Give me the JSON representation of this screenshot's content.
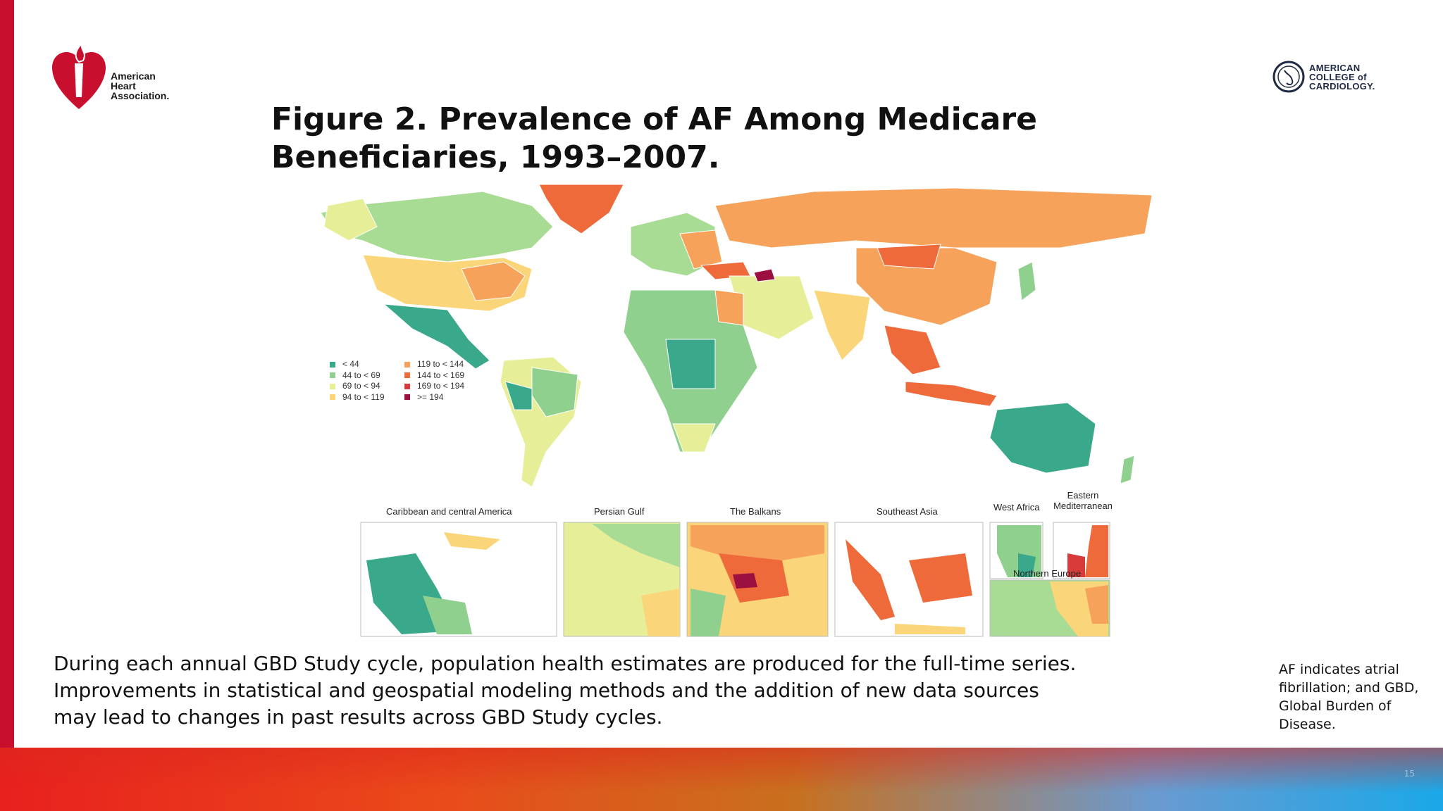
{
  "slide": {
    "title": "Figure 2. Prevalence of AF Among Medicare Beneficiaries, 1993–2007.",
    "body": "During each annual GBD Study cycle, population health estimates are produced for the full-time series. Improvements in statistical and geospatial modeling methods and the addition of new data sources may lead to changes in past results across GBD Study cycles.",
    "footnote": "AF indicates atrial fibrillation; and GBD, Global Burden of Disease.",
    "page_number": "15"
  },
  "logos": {
    "aha": {
      "line1": "American",
      "line2": "Heart",
      "line3": "Association."
    },
    "acc": {
      "line1": "AMERICAN",
      "line2": "COLLEGE of",
      "line3": "CARDIOLOGY."
    }
  },
  "legend": [
    {
      "label": "< 44",
      "color": "#3aa88a"
    },
    {
      "label": "44 to < 69",
      "color": "#8fd08f"
    },
    {
      "label": "69 to < 94",
      "color": "#e6ee98"
    },
    {
      "label": "94 to < 119",
      "color": "#fbd57a"
    },
    {
      "label": "119 to < 144",
      "color": "#f6a25a"
    },
    {
      "label": "144 to < 169",
      "color": "#ee6a3a"
    },
    {
      "label": "169 to < 194",
      "color": "#d93a3a"
    },
    {
      "label": ">= 194",
      "color": "#9b1040"
    }
  ],
  "insets": {
    "caribbean": "Caribbean and central America",
    "persian_gulf": "Persian Gulf",
    "balkans": "The Balkans",
    "southeast_asia": "Southeast Asia",
    "west_africa": "West Africa",
    "eastern_med": "Eastern Mediterranean",
    "northern_europe": "Northern Europe"
  }
}
